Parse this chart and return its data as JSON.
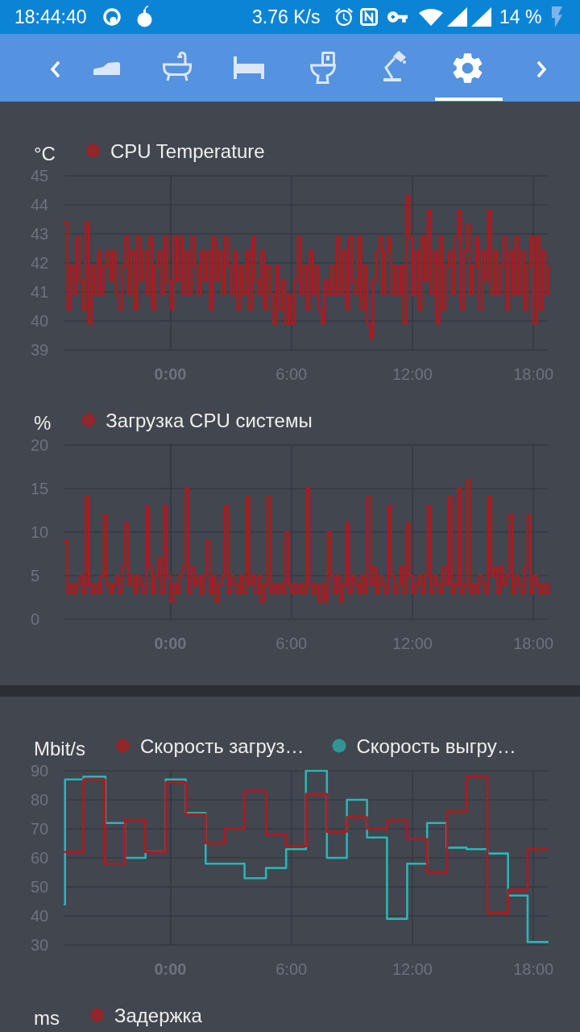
{
  "chart_data": [
    {
      "type": "step",
      "ylabel": "°C",
      "legend": "top left",
      "grid": true,
      "annotations": [
        "18:44:40",
        "3.76 K/s",
        "14 %"
      ],
      "xlim": [
        -5.25,
        18.75
      ],
      "xticks": [
        {
          "value": 0,
          "label": "0:00"
        },
        {
          "value": 6,
          "label": "6:00"
        },
        {
          "value": 12,
          "label": "12:00"
        },
        {
          "value": 18,
          "label": "18:00"
        }
      ],
      "ylim": [
        39,
        45
      ],
      "yticks": [
        39,
        40,
        41,
        42,
        43,
        44,
        45
      ],
      "x": [
        -5.25,
        -5.1,
        -4.95,
        -4.8,
        -4.65,
        -4.5,
        -4.35,
        -4.2,
        -4.05,
        -3.9,
        -3.75,
        -3.6,
        -3.45,
        -3.3,
        -3.15,
        -3,
        -2.85,
        -2.7,
        -2.55,
        -2.4,
        -2.25,
        -2.1,
        -1.95,
        -1.8,
        -1.65,
        -1.5,
        -1.35,
        -1.2,
        -1.05,
        -0.9,
        -0.75,
        -0.6,
        -0.45,
        -0.3,
        -0.15,
        0,
        0.15,
        0.3,
        0.45,
        0.6,
        0.75,
        0.9,
        1.05,
        1.2,
        1.35,
        1.5,
        1.65,
        1.8,
        1.95,
        2.1,
        2.25,
        2.4,
        2.55,
        2.7,
        2.85,
        3,
        3.15,
        3.3,
        3.45,
        3.6,
        3.75,
        3.9,
        4.05,
        4.2,
        4.35,
        4.5,
        4.65,
        4.8,
        4.95,
        5.1,
        5.25,
        5.4,
        5.55,
        5.7,
        5.85,
        6,
        6.15,
        6.3,
        6.45,
        6.6,
        6.75,
        6.9,
        7.05,
        7.2,
        7.35,
        7.5,
        7.65,
        7.8,
        7.95,
        8.1,
        8.25,
        8.4,
        8.55,
        8.7,
        8.85,
        9,
        9.15,
        9.3,
        9.45,
        9.6,
        9.75,
        9.9,
        10.05,
        10.2,
        10.35,
        10.5,
        10.65,
        10.8,
        10.95,
        11.1,
        11.25,
        11.4,
        11.55,
        11.7,
        11.85,
        12,
        12.15,
        12.3,
        12.45,
        12.6,
        12.75,
        12.9,
        13.05,
        13.2,
        13.35,
        13.5,
        13.65,
        13.8,
        13.95,
        14.1,
        14.25,
        14.4,
        14.55,
        14.7,
        14.85,
        15,
        15.15,
        15.3,
        15.45,
        15.6,
        15.75,
        15.9,
        16.05,
        16.2,
        16.35,
        16.5,
        16.65,
        16.8,
        16.95,
        17.1,
        17.25,
        17.4,
        17.55,
        17.7,
        17.85,
        18,
        18.15,
        18.3,
        18.45,
        18.6,
        18.75
      ],
      "series": [
        {
          "name": "CPU Temperature",
          "color": "#b3181c",
          "values": [
            43.4,
            40.4,
            41.9,
            40.9,
            42.9,
            41.4,
            40.4,
            43.4,
            39.9,
            41.9,
            40.9,
            42.4,
            40.9,
            41.9,
            42.4,
            41.4,
            42.4,
            40.9,
            40.4,
            41.9,
            42.9,
            40.9,
            42.4,
            40.4,
            42.9,
            41.4,
            42.4,
            40.9,
            42.9,
            40.4,
            41.9,
            42.4,
            40.9,
            42.9,
            41.4,
            40.4,
            42.9,
            41.4,
            42.9,
            40.9,
            42.4,
            40.9,
            42.9,
            41.9,
            40.9,
            42.4,
            41.4,
            42.4,
            40.4,
            42.9,
            41.4,
            42.4,
            40.9,
            42.9,
            41.9,
            40.9,
            42.4,
            40.4,
            41.9,
            40.9,
            42.4,
            40.4,
            42.9,
            41.4,
            40.9,
            42.4,
            40.4,
            41.9,
            40.9,
            39.9,
            41.9,
            40.4,
            41.4,
            39.9,
            40.9,
            39.9,
            41.4,
            42.9,
            40.9,
            41.9,
            40.4,
            42.4,
            40.9,
            41.9,
            40.4,
            39.9,
            41.4,
            40.9,
            41.9,
            40.9,
            42.9,
            40.9,
            42.4,
            40.4,
            42.9,
            41.4,
            40.9,
            42.9,
            40.4,
            41.9,
            39.9,
            39.4,
            41.4,
            42.4,
            42.9,
            40.9,
            42.4,
            42.9,
            40.9,
            41.9,
            40.9,
            41.9,
            39.9,
            44.3,
            42.9,
            40.9,
            42.4,
            40.4,
            42.9,
            41.4,
            43.8,
            40.9,
            42.4,
            39.9,
            42.9,
            40.4,
            41.9,
            42.4,
            40.9,
            42.9,
            43.8,
            40.4,
            42.4,
            43.3,
            40.9,
            41.9,
            42.9,
            40.4,
            42.4,
            41.4,
            43.8,
            40.9,
            42.4,
            40.9,
            41.9,
            42.9,
            40.4,
            42.4,
            40.9,
            42.9,
            40.9,
            42.4,
            40.4,
            41.9,
            42.9,
            39.9,
            42.9,
            40.4,
            42.4,
            40.9,
            41.9
          ]
        }
      ]
    },
    {
      "type": "step",
      "ylabel": "%",
      "legend": "top left",
      "grid": true,
      "xlim": [
        -5.25,
        18.75
      ],
      "xticks": [
        {
          "value": 0,
          "label": "0:00"
        },
        {
          "value": 6,
          "label": "6:00"
        },
        {
          "value": 12,
          "label": "12:00"
        },
        {
          "value": 18,
          "label": "18:00"
        }
      ],
      "ylim": [
        0,
        20
      ],
      "yticks": [
        0,
        5,
        10,
        15,
        20
      ],
      "x": [
        -5.25,
        -5.1,
        -4.95,
        -4.8,
        -4.65,
        -4.5,
        -4.35,
        -4.2,
        -4.05,
        -3.9,
        -3.75,
        -3.6,
        -3.45,
        -3.3,
        -3.15,
        -3,
        -2.85,
        -2.7,
        -2.55,
        -2.4,
        -2.25,
        -2.1,
        -1.95,
        -1.8,
        -1.65,
        -1.5,
        -1.35,
        -1.2,
        -1.05,
        -0.9,
        -0.75,
        -0.6,
        -0.45,
        -0.3,
        -0.15,
        0,
        0.15,
        0.3,
        0.45,
        0.6,
        0.75,
        0.9,
        1.05,
        1.2,
        1.35,
        1.5,
        1.65,
        1.8,
        1.95,
        2.1,
        2.25,
        2.4,
        2.55,
        2.7,
        2.85,
        3,
        3.15,
        3.3,
        3.45,
        3.6,
        3.75,
        3.9,
        4.05,
        4.2,
        4.35,
        4.5,
        4.65,
        4.8,
        4.95,
        5.1,
        5.25,
        5.4,
        5.55,
        5.7,
        5.85,
        6,
        6.15,
        6.3,
        6.45,
        6.6,
        6.75,
        6.9,
        7.05,
        7.2,
        7.35,
        7.5,
        7.65,
        7.8,
        7.95,
        8.1,
        8.25,
        8.4,
        8.55,
        8.7,
        8.85,
        9,
        9.15,
        9.3,
        9.45,
        9.6,
        9.75,
        9.9,
        10.05,
        10.2,
        10.35,
        10.5,
        10.65,
        10.8,
        10.95,
        11.1,
        11.25,
        11.4,
        11.55,
        11.7,
        11.85,
        12,
        12.15,
        12.3,
        12.45,
        12.6,
        12.75,
        12.9,
        13.05,
        13.2,
        13.35,
        13.5,
        13.65,
        13.8,
        13.95,
        14.1,
        14.25,
        14.4,
        14.55,
        14.7,
        14.85,
        15,
        15.15,
        15.3,
        15.45,
        15.6,
        15.75,
        15.9,
        16.05,
        16.2,
        16.35,
        16.5,
        16.65,
        16.8,
        16.95,
        17.1,
        17.25,
        17.4,
        17.55,
        17.7,
        17.85,
        18,
        18.15,
        18.3,
        18.45,
        18.6,
        18.75
      ],
      "series": [
        {
          "name": "Загрузка CPU системы",
          "color": "#b3181c",
          "values": [
            9,
            3,
            4,
            3,
            4,
            5,
            3,
            14,
            4,
            3,
            4,
            3,
            5,
            12,
            4,
            3,
            4,
            5,
            3,
            6,
            11,
            4,
            5,
            3,
            5,
            4,
            3,
            13,
            6,
            3,
            5,
            7,
            3,
            13,
            5,
            2,
            4,
            3,
            5,
            6,
            15,
            3,
            6,
            4,
            5,
            3,
            5,
            9,
            3,
            5,
            2,
            4,
            5,
            13,
            3,
            5,
            4,
            3,
            5,
            3,
            14,
            4,
            5,
            3,
            5,
            2,
            4,
            14,
            3,
            4,
            3,
            4,
            3,
            10,
            4,
            3,
            4,
            3,
            4,
            3,
            15,
            4,
            3,
            4,
            2,
            4,
            2,
            10,
            5,
            3,
            5,
            2,
            4,
            11,
            3,
            5,
            4,
            3,
            5,
            3,
            14,
            4,
            6,
            3,
            5,
            4,
            3,
            13,
            5,
            3,
            4,
            6,
            3,
            11,
            5,
            3,
            4,
            5,
            3,
            5,
            13,
            3,
            5,
            4,
            3,
            6,
            4,
            14,
            3,
            4,
            15,
            3,
            4,
            16,
            3,
            4,
            3,
            5,
            4,
            3,
            14,
            5,
            6,
            3,
            6,
            4,
            5,
            12,
            3,
            5,
            4,
            3,
            6,
            12,
            3,
            5,
            4,
            3,
            4,
            3,
            4
          ]
        }
      ]
    },
    {
      "type": "step",
      "ylabel": "Mbit/s",
      "legend": "top left",
      "grid": true,
      "xlim": [
        -5.25,
        18.75
      ],
      "xticks": [
        {
          "value": 0,
          "label": "0:00"
        },
        {
          "value": 6,
          "label": "6:00"
        },
        {
          "value": 12,
          "label": "12:00"
        },
        {
          "value": 18,
          "label": "18:00"
        }
      ],
      "ylim": [
        30,
        90
      ],
      "yticks": [
        30,
        40,
        50,
        60,
        70,
        80,
        90
      ],
      "series": [
        {
          "name": "Скорость загруз…",
          "color": "#b3181c",
          "x": [
            -5.25,
            -4.31,
            -3.25,
            -2.25,
            -1.26,
            -0.23,
            0.77,
            1.75,
            2.69,
            3.68,
            4.74,
            5.74,
            6.72,
            7.76,
            8.75,
            9.75,
            10.74,
            11.74,
            12.73,
            13.72,
            14.69,
            15.72,
            16.74,
            17.71,
            18.7
          ],
          "values": [
            62,
            87,
            58,
            73,
            62,
            86,
            75,
            65,
            70,
            83,
            68,
            64,
            82,
            69,
            74,
            70,
            73,
            66.5,
            55,
            76,
            88,
            41,
            49,
            63,
            63
          ]
        },
        {
          "name": "Скорость выгру…",
          "color": "#2ab5b7",
          "x": [
            -5.25,
            -5.22,
            -4.31,
            -3.22,
            -2.25,
            -1.23,
            -0.23,
            0.77,
            1.75,
            3.68,
            4.74,
            5.74,
            6.72,
            7.76,
            8.75,
            9.75,
            10.74,
            11.74,
            12.73,
            13.7,
            14.69,
            15.72,
            16.74,
            17.71,
            18.7
          ],
          "values": [
            44,
            87,
            88,
            72,
            60,
            62,
            87,
            75.5,
            58,
            53,
            56.5,
            63,
            90,
            60,
            80,
            67,
            39,
            58,
            72,
            63.5,
            63,
            61.5,
            47,
            31,
            31
          ]
        }
      ]
    },
    {
      "type": "other",
      "ylabel": "ms",
      "legend": "top left",
      "series": [
        {
          "name": "Задержка",
          "color": "#b3181c"
        }
      ]
    }
  ]
}
